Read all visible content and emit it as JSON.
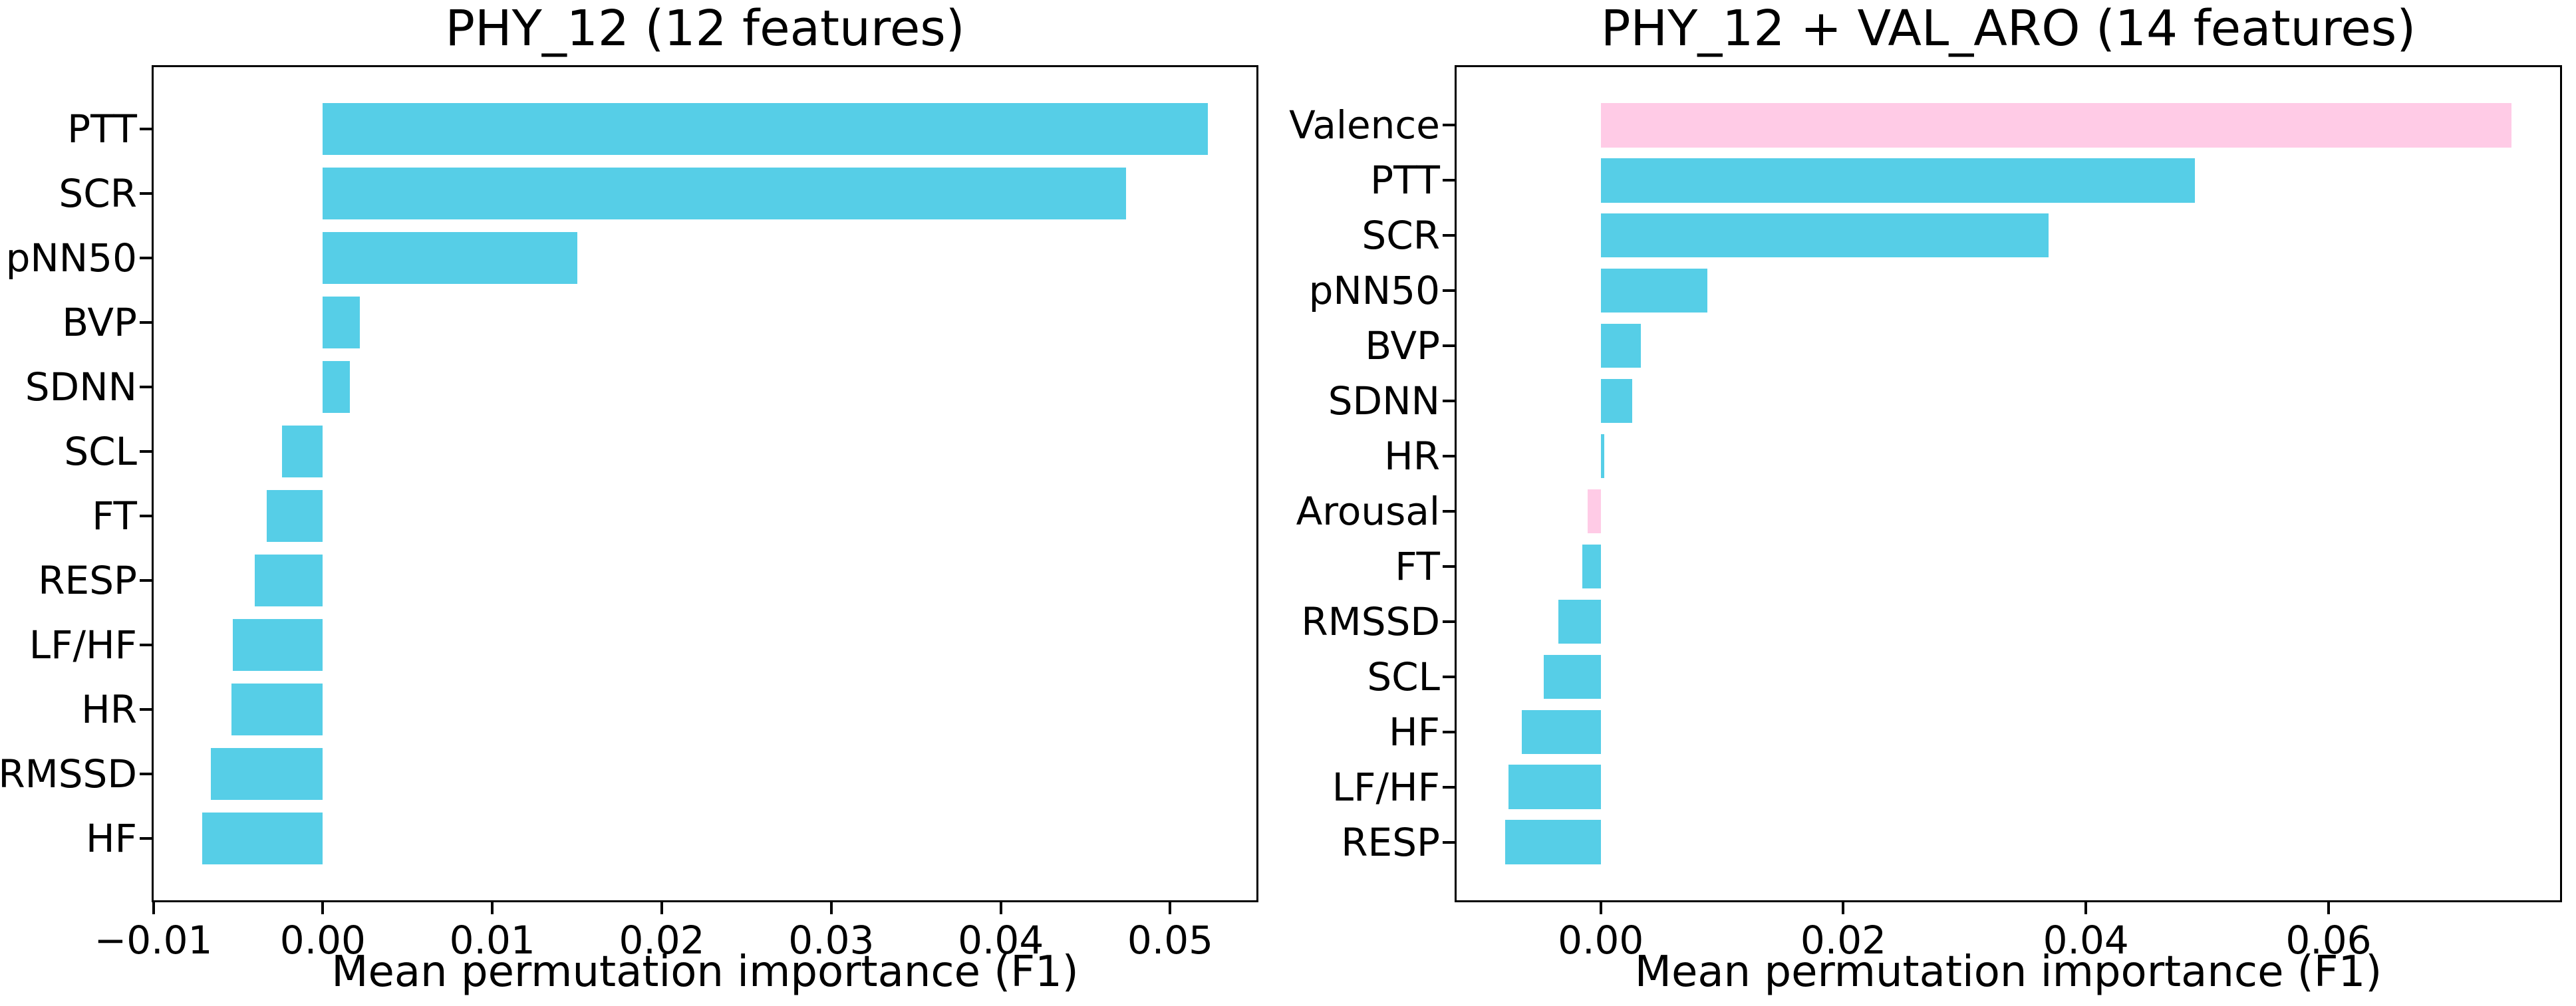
{
  "figure": {
    "background": "#ffffff",
    "colors": {
      "phy": "#56cee7",
      "valaro": "#ffcbe6",
      "text": "#000000",
      "spine": "#000000"
    }
  },
  "chart_data": [
    {
      "type": "bar",
      "orientation": "horizontal",
      "title": "PHY_12 (12 features)",
      "xlabel": "Mean permutation importance (F1)",
      "categories": [
        "PTT",
        "SCR",
        "pNN50",
        "BVP",
        "SDNN",
        "SCL",
        "FT",
        "RESP",
        "LF/HF",
        "HR",
        "RMSSD",
        "HF"
      ],
      "values": [
        0.0522,
        0.0474,
        0.015,
        0.0022,
        0.0016,
        -0.0024,
        -0.0033,
        -0.004,
        -0.0053,
        -0.0054,
        -0.0066,
        -0.0071
      ],
      "bar_groups": [
        "phy",
        "phy",
        "phy",
        "phy",
        "phy",
        "phy",
        "phy",
        "phy",
        "phy",
        "phy",
        "phy",
        "phy"
      ],
      "xlim": [
        -0.0101,
        0.0552
      ],
      "xticks": [
        -0.01,
        0.0,
        0.01,
        0.02,
        0.03,
        0.04,
        0.05
      ],
      "xtick_labels": [
        "−0.01",
        "0.00",
        "0.01",
        "0.02",
        "0.03",
        "0.04",
        "0.05"
      ],
      "grid": false,
      "legend": "none"
    },
    {
      "type": "bar",
      "orientation": "horizontal",
      "title": "PHY_12 + VAL_ARO (14 features)",
      "xlabel": "Mean permutation importance (F1)",
      "categories": [
        "Valence",
        "PTT",
        "SCR",
        "pNN50",
        "BVP",
        "SDNN",
        "HR",
        "Arousal",
        "FT",
        "RMSSD",
        "SCL",
        "HF",
        "LF/HF",
        "RESP"
      ],
      "values": [
        0.0751,
        0.049,
        0.0369,
        0.0088,
        0.0033,
        0.0026,
        0.0003,
        -0.0011,
        -0.0015,
        -0.0035,
        -0.0047,
        -0.0065,
        -0.0076,
        -0.0079
      ],
      "bar_groups": [
        "valaro",
        "phy",
        "phy",
        "phy",
        "phy",
        "phy",
        "phy",
        "valaro",
        "phy",
        "phy",
        "phy",
        "phy",
        "phy",
        "phy"
      ],
      "xlim": [
        -0.01205,
        0.07925
      ],
      "xticks": [
        0.0,
        0.02,
        0.04,
        0.06
      ],
      "xtick_labels": [
        "0.00",
        "0.02",
        "0.04",
        "0.06"
      ],
      "grid": false,
      "legend": "none"
    }
  ]
}
